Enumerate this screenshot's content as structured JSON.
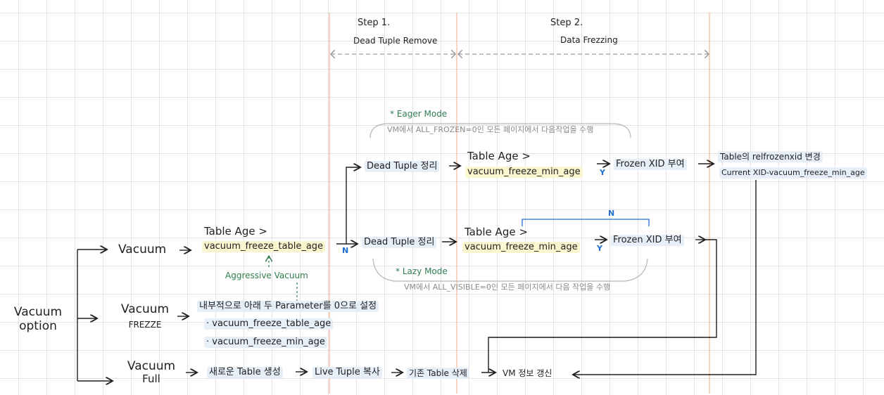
{
  "steps": {
    "step1": {
      "title": "Step 1.",
      "subtitle": "Dead Tuple Remove"
    },
    "step2": {
      "title": "Step 2.",
      "subtitle": "Data Frezzing"
    }
  },
  "root": {
    "line1": "Vacuum",
    "line2": "option"
  },
  "branches": {
    "vacuum": "Vacuum",
    "freeze": {
      "line1": "Vacuum",
      "line2": "FREZZE"
    },
    "full": {
      "line1": "Vacuum",
      "line2": "Full"
    }
  },
  "vacuum_path": {
    "cond_line1": "Table Age >",
    "cond_line2": "vacuum_freeze_table_age",
    "aggressive": "Aggressive Vacuum",
    "n_label": "N",
    "lazy": {
      "dead_tuple": "Dead Tuple 정리",
      "cond_line1": "Table Age >",
      "cond_line2": "vacuum_freeze_min_age",
      "y_label": "Y",
      "n_label": "N",
      "frozen": "Frozen XID 부여",
      "mode": "* Lazy Mode",
      "mode_desc": "VM에서 ALL_VISIBLE=0인 모든 페이지에서 다음 작업을 수행"
    },
    "eager": {
      "dead_tuple": "Dead Tuple 정리",
      "cond_line1": "Table Age >",
      "cond_line2": "vacuum_freeze_min_age",
      "y_label": "Y",
      "frozen": "Frozen XID 부여",
      "mode": "* Eager Mode",
      "mode_desc": "VM에서 ALL_FROZEN=0인 모든 페이지에서 다음작업을 수행",
      "result_line1": "Table의 relfrozenxid 변경",
      "result_line2": "Current XID-vacuum_freeze_min_age"
    }
  },
  "freeze_path": {
    "desc": "내부적으로 아래 두 Parameter를 0으로 설정",
    "param1": "· vacuum_freeze_table_age",
    "param2": "· vacuum_freeze_min_age"
  },
  "full_path": {
    "step1": "새로운 Table 생성",
    "step2": "Live Tuple 복사",
    "step3": "기존 Table 삭제",
    "step4": "VM 정보 갱신"
  },
  "colors": {
    "ink": "#1f1f1f",
    "step_band": "#f6c4ad",
    "green": "#2e7d4f",
    "blue": "#1f6fd1",
    "gray": "#8a8a8a"
  }
}
